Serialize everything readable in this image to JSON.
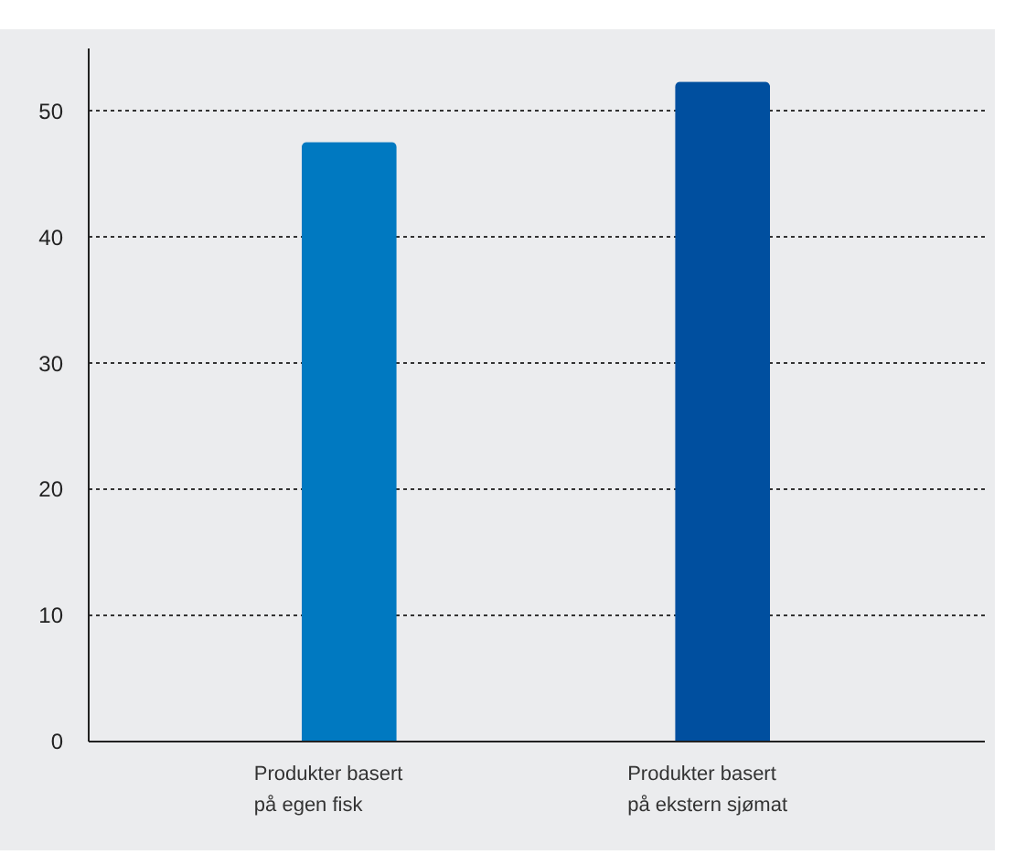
{
  "chart_data": {
    "type": "bar",
    "categories": [
      "Produkter basert på egen fisk",
      "Produkter basert på ekstern sjømat"
    ],
    "values": [
      47.5,
      52.3
    ],
    "colors": [
      "#0079c1",
      "#004f9f"
    ],
    "ylim": [
      0,
      55
    ],
    "yticks": [
      0,
      10,
      20,
      30,
      40,
      50
    ],
    "grid": "y"
  }
}
